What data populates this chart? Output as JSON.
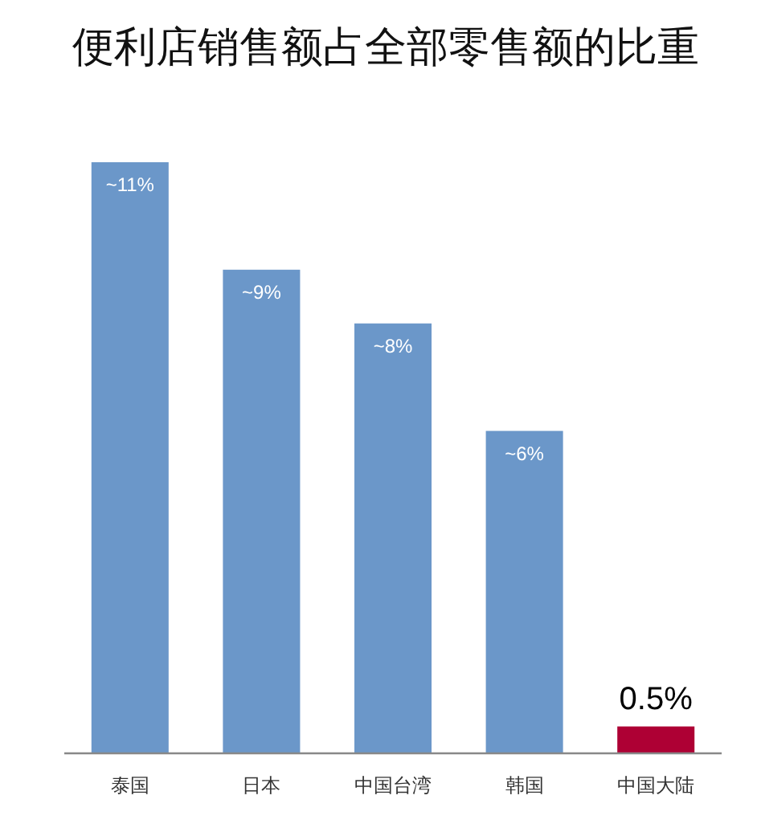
{
  "chart_data": {
    "type": "bar",
    "title": "便利店销售额占全部零售额的比重",
    "categories": [
      "泰国",
      "日本",
      "中国台湾",
      "韩国",
      "中国大陆"
    ],
    "values": [
      11,
      9,
      8,
      6,
      0.5
    ],
    "value_labels": [
      "~11%",
      "~9%",
      "~8%",
      "~6%",
      "0.5%"
    ],
    "colors": [
      "#6b97c9",
      "#6b97c9",
      "#6b97c9",
      "#6b97c9",
      "#ae0034"
    ]
  }
}
